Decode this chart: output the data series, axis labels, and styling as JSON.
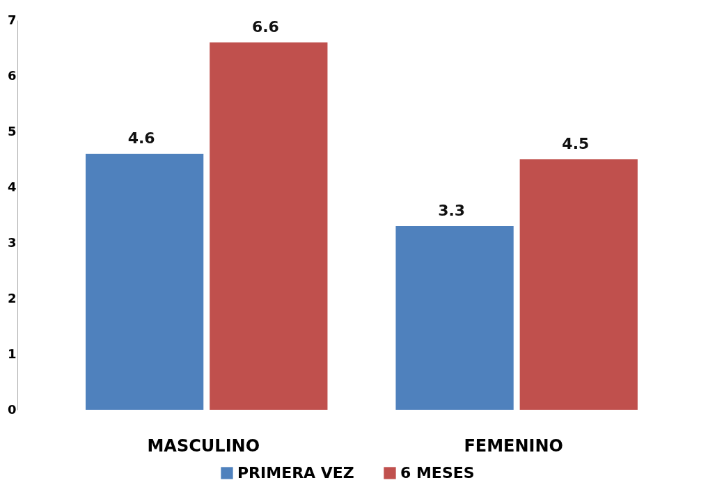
{
  "chart_data": {
    "type": "bar",
    "categories": [
      "MASCULINO",
      "FEMENINO"
    ],
    "series": [
      {
        "name": "PRIMERA VEZ",
        "color": "#4f81bd",
        "values": [
          4.6,
          3.3
        ]
      },
      {
        "name": "6 MESES",
        "color": "#c0504d",
        "values": [
          6.6,
          4.5
        ]
      }
    ],
    "ylim": [
      0,
      7
    ],
    "yticks": [
      0,
      1,
      2,
      3,
      4,
      5,
      6,
      7
    ],
    "grid": false,
    "legend": "bottom",
    "data_labels": true
  }
}
